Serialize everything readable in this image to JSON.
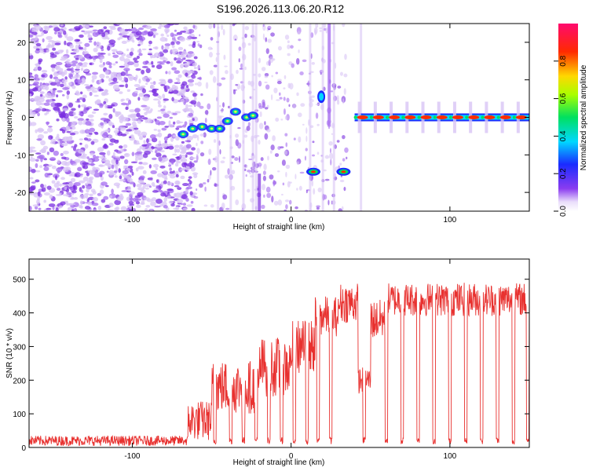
{
  "title": "S196.2026.113.06.20.R12",
  "colors": {
    "snr_line": "#e8312f",
    "dot_light": "#d8c4f5",
    "dot_mid": "#a66ef0",
    "dot_dark": "#7a2ee0",
    "background": "#ffffff"
  },
  "chart_data": [
    {
      "type": "heatmap",
      "title": "S196.2026.113.06.20.R12",
      "xlabel": "Height of straight line (km)",
      "ylabel": "Frequency (Hz)",
      "xlim": [
        -165,
        150
      ],
      "ylim": [
        -25,
        25
      ],
      "x_ticks": [
        -100,
        0,
        100
      ],
      "y_ticks": [
        -20,
        -10,
        0,
        10,
        20
      ],
      "colorbar": {
        "label": "Normalized spectral amplitude",
        "range": [
          0.0,
          1.0
        ],
        "ticks": [
          0.0,
          0.2,
          0.4,
          0.6,
          0.8
        ],
        "colormap": "rainbow (violet to red)"
      },
      "features": [
        {
          "name": "noise_region",
          "x_range": [
            -165,
            -65
          ],
          "y_range": [
            -25,
            25
          ],
          "amplitude": 0.1
        },
        {
          "name": "rising_track",
          "points": [
            [
              -68,
              -4.5
            ],
            [
              -62,
              -3
            ],
            [
              -56,
              -2.5
            ],
            [
              -50,
              -3
            ],
            [
              -45,
              -3
            ],
            [
              -40,
              -1
            ],
            [
              -35,
              1.5
            ],
            [
              -28,
              0
            ],
            [
              -24,
              0.5
            ]
          ]
        },
        {
          "name": "blip",
          "x": 14,
          "y": -14.5,
          "amplitude": 1.0
        },
        {
          "name": "blip",
          "x": 33,
          "y": -14.5,
          "amplitude": 1.0
        },
        {
          "name": "blip",
          "x": 19,
          "y": 5.5,
          "amplitude": 0.4
        },
        {
          "name": "carrier_line",
          "x_range": [
            40,
            150
          ],
          "y": 0,
          "amplitude": 0.95,
          "pulse_spacing_km": 10
        }
      ]
    },
    {
      "type": "line",
      "xlabel": "Height of straight line (km)",
      "ylabel": "SNR (10 * v/v)",
      "xlim": [
        -165,
        150
      ],
      "ylim": [
        0,
        560
      ],
      "x_ticks": [
        -100,
        0,
        100
      ],
      "y_ticks": [
        0,
        100,
        200,
        300,
        400,
        500
      ],
      "segments": [
        {
          "x_range": [
            -165,
            -65
          ],
          "level": 20,
          "noise": 15
        },
        {
          "x_range": [
            -65,
            -50
          ],
          "level": 80,
          "noise": 60
        },
        {
          "x_range": [
            -50,
            -20
          ],
          "level": 180,
          "noise": 80
        },
        {
          "x_range": [
            -20,
            0
          ],
          "level": 240,
          "noise": 90
        },
        {
          "x_range": [
            0,
            15
          ],
          "level": 300,
          "noise": 80
        },
        {
          "x_range": [
            15,
            30
          ],
          "level": 390,
          "noise": 60
        },
        {
          "x_range": [
            30,
            42
          ],
          "level": 430,
          "noise": 60
        },
        {
          "x_range": [
            42,
            50
          ],
          "level": 200,
          "noise": 40
        },
        {
          "x_range": [
            50,
            60
          ],
          "level": 380,
          "noise": 60
        },
        {
          "x_range": [
            60,
            150
          ],
          "level": 440,
          "noise": 50
        }
      ],
      "dropouts_x": [
        -48,
        -38,
        -30,
        -22,
        -14,
        -6,
        2,
        10,
        17,
        25,
        46,
        60,
        70,
        80,
        90,
        100,
        110,
        120,
        130,
        140,
        149
      ]
    }
  ]
}
